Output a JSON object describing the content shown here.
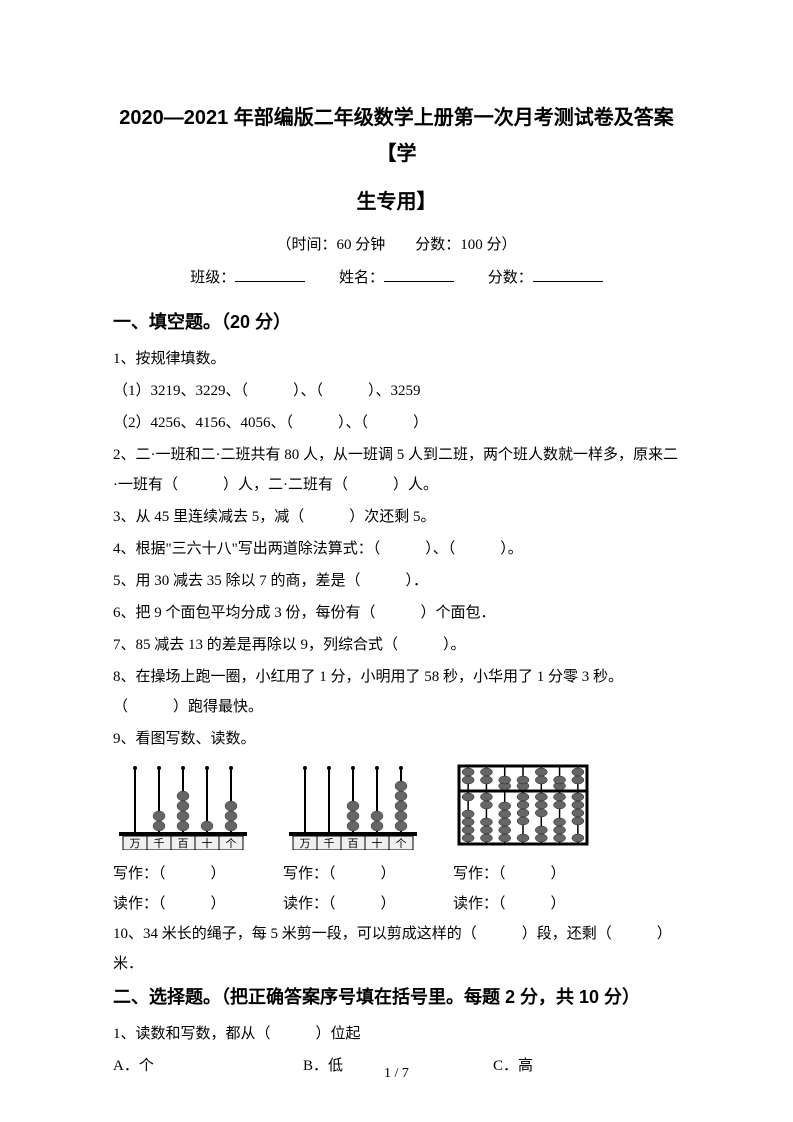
{
  "doc": {
    "title_line1": "2020—2021 年部编版二年级数学上册第一次月考测试卷及答案【学",
    "title_line2": "生专用】",
    "meta": "（时间：60 分钟　　分数：100 分）",
    "info_class_label": "班级：",
    "info_name_label": "姓名：",
    "info_score_label": "分数：",
    "page_num": "1 / 7"
  },
  "section1": {
    "header": "一、填空题。（20 分）",
    "q1": "1、按规律填数。",
    "q1_1": "（1）3219、3229、（　　　）、（　　　）、3259",
    "q1_2": "（2）4256、4156、4056、（　　　）、（　　　）",
    "q2": "2、二·一班和二·二班共有 80 人，从一班调 5 人到二班，两个班人数就一样多，原来二·一班有（　　　）人，二·二班有（　　　）人。",
    "q3": "3、从 45 里连续减去 5，减（　　　）次还剩 5。",
    "q4": "4、根据\"三六十八\"写出两道除法算式：（　　　）、（　　　）。",
    "q5": "5、用 30 减去 35 除以 7 的商，差是（　　　）．",
    "q6": "6、把 9 个面包平均分成 3 份，每份有（　　　）个面包．",
    "q7": "7、85 减去 13 的差是再除以 9，列综合式（　　　）。",
    "q8": "8、在操场上跑一圈，小红用了 1 分，小明用了 58 秒，小华用了 1 分零 3 秒。（　　　）跑得最快。",
    "q9": "9、看图写数、读数。",
    "q9_write": "写作：（　　　）",
    "q9_read": "读作：（　　　）",
    "q10": "10、34 米长的绳子，每 5 米剪一段，可以剪成这样的（　　　）段，还剩（　　　）米．"
  },
  "section2": {
    "header": "二、选择题。（把正确答案序号填在括号里。每题 2 分，共 10 分）",
    "q1": "1、读数和写数，都从（　　　）位起",
    "q1_a": "A．个",
    "q1_b": "B．低",
    "q1_c": "C．高"
  },
  "abacus": {
    "labels": [
      "万",
      "千",
      "百",
      "十",
      "个"
    ],
    "img1": {
      "beads": [
        0,
        2,
        4,
        1,
        3
      ],
      "style": "labeled"
    },
    "img2": {
      "beads": [
        0,
        0,
        3,
        2,
        5
      ],
      "style": "labeled"
    },
    "img3": {
      "upper": [
        0,
        0,
        1,
        1,
        0,
        1,
        0
      ],
      "lower": [
        1,
        2,
        0,
        4,
        3,
        2,
        4
      ],
      "style": "suanpan"
    },
    "colors": {
      "bead": "#666666",
      "frame": "#000000",
      "rod": "#000000",
      "label_bg": "#f0f0f0"
    }
  }
}
